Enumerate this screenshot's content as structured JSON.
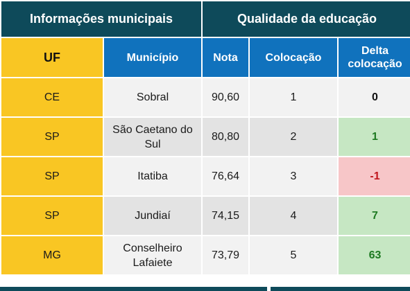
{
  "header": {
    "group_left": "Informações municipais",
    "group_right": "Qualidade da educação"
  },
  "columns": {
    "uf": "UF",
    "municipio": "Município",
    "nota": "Nota",
    "colocacao": "Colocação",
    "delta": "Delta colocação"
  },
  "rows": [
    {
      "uf": "CE",
      "municipio": "Sobral",
      "nota": "90,60",
      "colocacao": "1",
      "delta": "0",
      "delta_status": "neutral"
    },
    {
      "uf": "SP",
      "municipio": "São Caetano do Sul",
      "nota": "80,80",
      "colocacao": "2",
      "delta": "1",
      "delta_status": "positive"
    },
    {
      "uf": "SP",
      "municipio": "Itatiba",
      "nota": "76,64",
      "colocacao": "3",
      "delta": "-1",
      "delta_status": "negative"
    },
    {
      "uf": "SP",
      "municipio": "Jundiaí",
      "nota": "74,15",
      "colocacao": "4",
      "delta": "7",
      "delta_status": "positive"
    },
    {
      "uf": "MG",
      "municipio": "Conselheiro Lafaiete",
      "nota": "73,79",
      "colocacao": "5",
      "delta": "63",
      "delta_status": "positive"
    }
  ],
  "colors": {
    "header_dark": "#0e4a5a",
    "header_blue": "#1072bd",
    "uf_yellow": "#f9c623",
    "positive_bg": "#c6e7c3",
    "negative_bg": "#f7c6c8"
  }
}
